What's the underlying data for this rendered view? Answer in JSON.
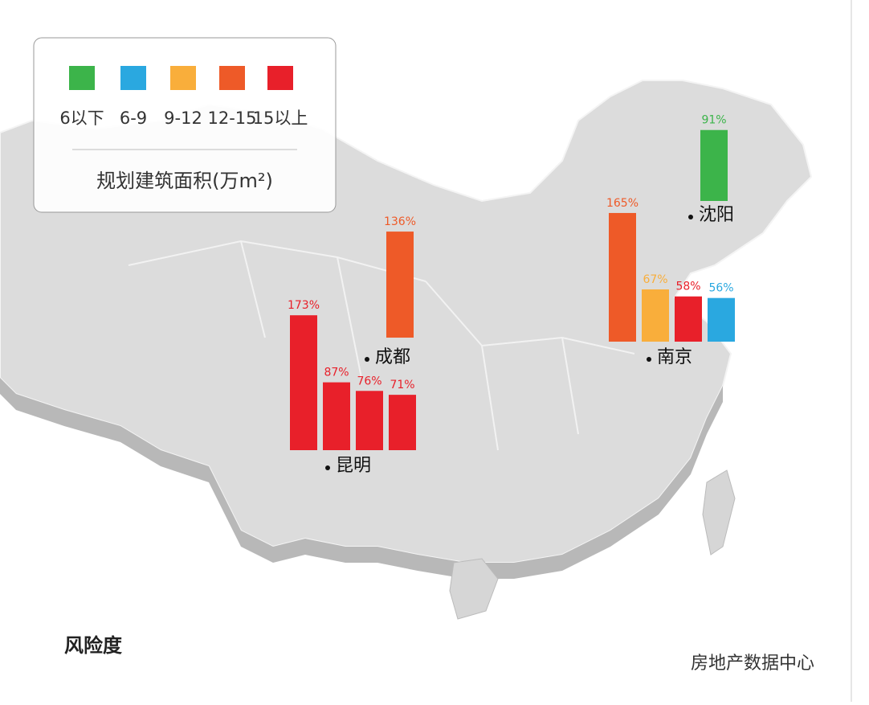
{
  "legend": {
    "items": [
      {
        "color": "#3cb44a",
        "label": "6以下"
      },
      {
        "color": "#2aa8e0",
        "label": "6-9"
      },
      {
        "color": "#f9ae3b",
        "label": "9-12"
      },
      {
        "color": "#ee5a28",
        "label": "12-15"
      },
      {
        "color": "#e8202a",
        "label": "15以上"
      }
    ],
    "title": "规划建筑面积(万m²)"
  },
  "cities": [
    {
      "name": "沈阳",
      "values": [
        91
      ],
      "value_labels": [
        "91%"
      ],
      "colors": [
        "#3cb44a"
      ]
    },
    {
      "name": "南京",
      "values": [
        165,
        67,
        58,
        56
      ],
      "value_labels": [
        "165%",
        "67%",
        "58%",
        "56%"
      ],
      "colors": [
        "#ee5a28",
        "#f9ae3b",
        "#e8202a",
        "#2aa8e0"
      ]
    },
    {
      "name": "成都",
      "values": [
        136
      ],
      "value_labels": [
        "136%"
      ],
      "colors": [
        "#ee5a28"
      ]
    },
    {
      "name": "昆明",
      "values": [
        173,
        87,
        76,
        71
      ],
      "value_labels": [
        "173%",
        "87%",
        "76%",
        "71%"
      ],
      "colors": [
        "#e8202a",
        "#e8202a",
        "#e8202a",
        "#e8202a"
      ]
    }
  ],
  "footer": {
    "title": "风险度",
    "source": "房地产数据中心"
  }
}
